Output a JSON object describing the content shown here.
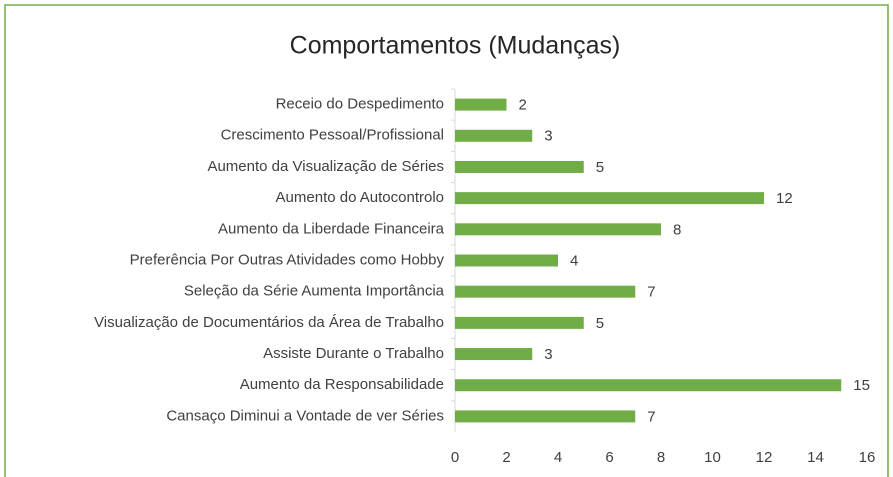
{
  "chart_data": {
    "type": "bar",
    "orientation": "horizontal",
    "title": "Comportamentos (Mudanças)",
    "categories": [
      "Receio do Despedimento",
      "Crescimento Pessoal/Profissional",
      "Aumento da Visualização de Séries",
      "Aumento do Autocontrolo",
      "Aumento da Liberdade Financeira",
      "Preferência Por Outras Atividades como Hobby",
      "Seleção da Série Aumenta Importância",
      "Visualização de Documentários da Área de Trabalho",
      "Assiste Durante o Trabalho",
      "Aumento da Responsabilidade",
      "Cansaço Diminui a Vontade de ver Séries"
    ],
    "values": [
      2,
      3,
      5,
      12,
      8,
      4,
      7,
      5,
      3,
      15,
      7
    ],
    "color": "#70ad47",
    "xlim": [
      0,
      16
    ],
    "xticks": [
      0,
      2,
      4,
      6,
      8,
      10,
      12,
      14,
      16
    ],
    "grid": false
  }
}
